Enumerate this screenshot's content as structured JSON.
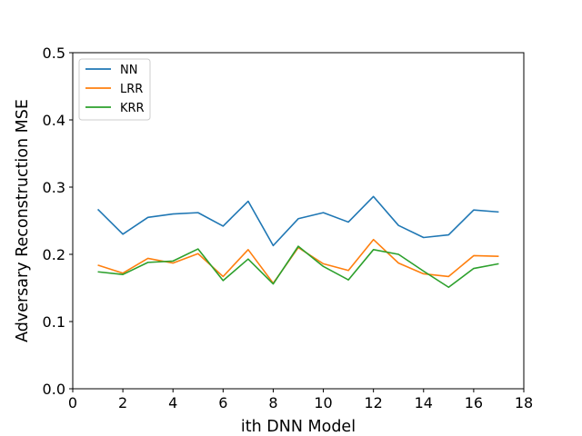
{
  "chart_data": {
    "type": "line",
    "title": "",
    "xlabel": "ith DNN Model",
    "ylabel": "Adversary Reconstruction MSE",
    "xlim": [
      0,
      18
    ],
    "ylim": [
      0,
      0.5
    ],
    "xticks": [
      "0",
      "2",
      "4",
      "6",
      "8",
      "10",
      "12",
      "14",
      "16",
      "18"
    ],
    "yticks": [
      "0.0",
      "0.1",
      "0.2",
      "0.3",
      "0.4",
      "0.5"
    ],
    "grid": false,
    "legend_position": "top-left",
    "x": [
      1,
      2,
      3,
      4,
      5,
      6,
      7,
      8,
      9,
      10,
      11,
      12,
      13,
      14,
      15,
      16,
      17
    ],
    "series": [
      {
        "name": "NN",
        "color": "#1f77b4",
        "values": [
          0.267,
          0.23,
          0.255,
          0.26,
          0.262,
          0.242,
          0.279,
          0.213,
          0.253,
          0.262,
          0.248,
          0.286,
          0.243,
          0.225,
          0.229,
          0.266,
          0.263
        ]
      },
      {
        "name": "LRR",
        "color": "#ff7f0e",
        "values": [
          0.184,
          0.172,
          0.194,
          0.187,
          0.201,
          0.167,
          0.207,
          0.157,
          0.21,
          0.186,
          0.176,
          0.222,
          0.187,
          0.171,
          0.167,
          0.198,
          0.197
        ]
      },
      {
        "name": "KRR",
        "color": "#2ca02c",
        "values": [
          0.174,
          0.17,
          0.188,
          0.19,
          0.208,
          0.161,
          0.193,
          0.156,
          0.212,
          0.182,
          0.162,
          0.207,
          0.2,
          0.175,
          0.151,
          0.179,
          0.186
        ]
      }
    ]
  }
}
